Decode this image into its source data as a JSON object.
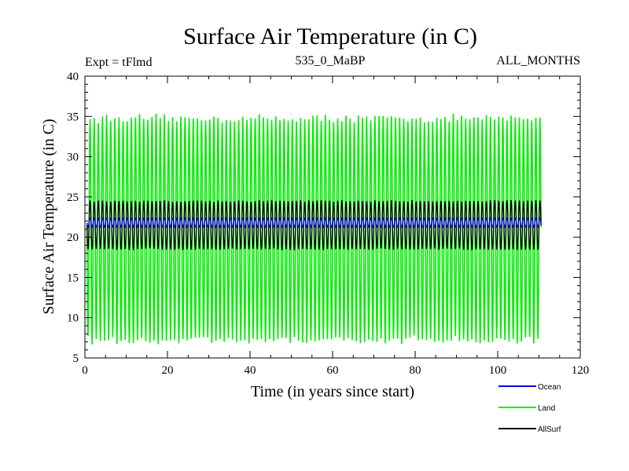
{
  "chart_data": {
    "type": "line",
    "title": "Surface Air Temperature (in C)",
    "subtitle_left": "Expt = tFlmd",
    "subtitle_center": "535_0_MaBP",
    "subtitle_right": "ALL_MONTHS",
    "xlabel": "Time (in years since start)",
    "ylabel": "Surface Air Temperature (in C)",
    "xlim": [
      0,
      120
    ],
    "ylim": [
      5,
      40
    ],
    "xticks": [
      0,
      20,
      40,
      60,
      80,
      100,
      120
    ],
    "yticks": [
      5,
      10,
      15,
      20,
      25,
      30,
      35,
      40
    ],
    "x_minor_step": 5,
    "y_minor_step": 1,
    "grid": false,
    "legend_position": "bottom-right",
    "time_span_years": [
      0.5,
      110.5
    ],
    "series": [
      {
        "name": "Land",
        "color": "#00ee00",
        "seasonal_cycle": true,
        "annual_mean": 21.0,
        "typical_max": 35.0,
        "typical_min": 7.5
      },
      {
        "name": "AllSurf",
        "color": "#000000",
        "seasonal_cycle": true,
        "annual_mean": 21.5,
        "typical_max": 24.5,
        "typical_min": 18.5
      },
      {
        "name": "Ocean",
        "color": "#0000dd",
        "seasonal_cycle": true,
        "annual_mean": 21.8,
        "typical_max": 22.3,
        "typical_min": 21.2
      }
    ]
  }
}
